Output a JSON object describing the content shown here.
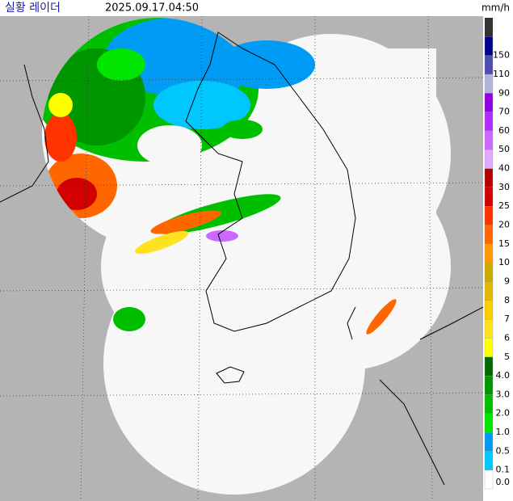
{
  "header": {
    "title": "실황 레이더",
    "time": "2025.09.17.04:50"
  },
  "legend": {
    "unit": "mm/h",
    "top_color": "#333333",
    "levels": [
      {
        "label": "0.0",
        "color": "#ffffff"
      },
      {
        "label": "0.1",
        "color": "#00c8ff"
      },
      {
        "label": "0.5",
        "color": "#009bf5"
      },
      {
        "label": "1.0",
        "color": "#00e600"
      },
      {
        "label": "2.0",
        "color": "#00be00"
      },
      {
        "label": "3.0",
        "color": "#009600"
      },
      {
        "label": "4.0",
        "color": "#006a00"
      },
      {
        "label": "5",
        "color": "#ffff00"
      },
      {
        "label": "6",
        "color": "#ffe21f"
      },
      {
        "label": "7",
        "color": "#f9cd00"
      },
      {
        "label": "8",
        "color": "#e0b900"
      },
      {
        "label": "9",
        "color": "#ccaa00"
      },
      {
        "label": "10",
        "color": "#ff9b00"
      },
      {
        "label": "15",
        "color": "#ff6600"
      },
      {
        "label": "20",
        "color": "#ff3200"
      },
      {
        "label": "25",
        "color": "#d20000"
      },
      {
        "label": "30",
        "color": "#b40000"
      },
      {
        "label": "40",
        "color": "#e0a9ff"
      },
      {
        "label": "50",
        "color": "#c969ff"
      },
      {
        "label": "60",
        "color": "#b329ff"
      },
      {
        "label": "70",
        "color": "#9300e4"
      },
      {
        "label": "90",
        "color": "#b3b4de"
      },
      {
        "label": "110",
        "color": "#4c4eb1"
      },
      {
        "label": "150",
        "color": "#000390"
      }
    ]
  }
}
